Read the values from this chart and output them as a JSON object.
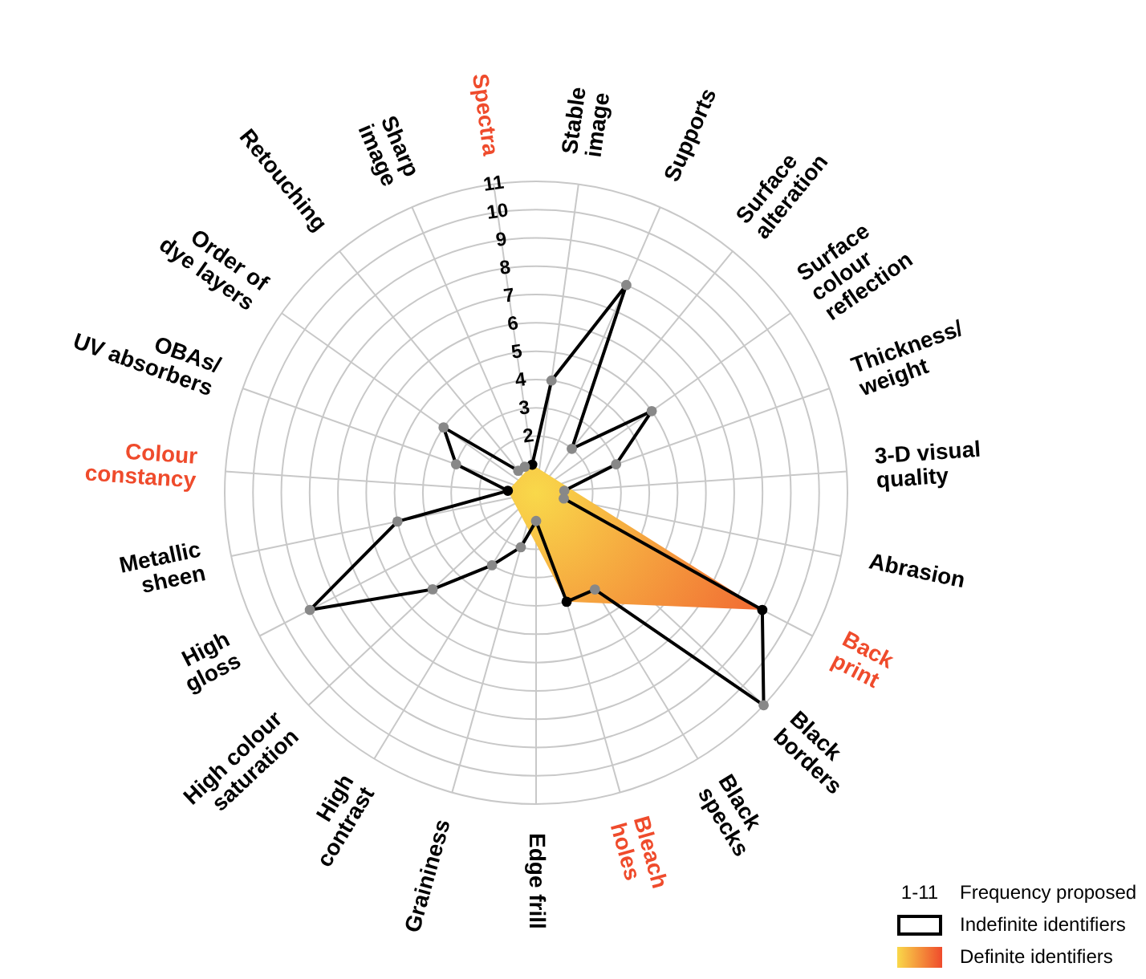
{
  "chart_data": {
    "type": "radar",
    "categories": [
      "Spectra",
      "Stable\nimage",
      "Supports",
      "Surface\nalteration",
      "Surface\ncolour\nreflection",
      "Thickness/\nweight",
      "3-D visual\nquality",
      "Abrasion",
      "Back\nprint",
      "Black\nborders",
      "Black\nspecks",
      "Bleach\nholes",
      "Edge frill",
      "Graininess",
      "High\ncontrast",
      "High colour\nsaturation",
      "High\ngloss",
      "Metallic\nsheen",
      "Colour\nconstancy",
      "OBAs/\nUV absorbers",
      "Order of\ndye layers",
      "Retouching",
      "Sharp\nimage"
    ],
    "series": [
      {
        "name": "Indefinite identifiers",
        "color": "#000000",
        "values": [
          1,
          4,
          8,
          2,
          5,
          3,
          1,
          1,
          9,
          11,
          4,
          4,
          1,
          2,
          3,
          5,
          9,
          5,
          1,
          3,
          4,
          1,
          1
        ],
        "colors": [
          "#000000",
          "#888888",
          "#888888",
          "#888888",
          "#888888",
          "#888888",
          "#888888",
          "#888888",
          "#000000",
          "#888888",
          "#888888",
          "#000000",
          "#888888",
          "#888888",
          "#888888",
          "#888888",
          "#888888",
          "#888888",
          "#000000",
          "#888888",
          "#888888",
          "#888888",
          "#888888"
        ]
      },
      {
        "name": "Definite identifiers",
        "color": "#ef4b2c",
        "values": [
          1,
          null,
          null,
          null,
          null,
          null,
          null,
          null,
          9,
          null,
          null,
          4,
          null,
          null,
          null,
          null,
          null,
          null,
          1,
          null,
          null,
          null,
          null
        ]
      }
    ],
    "ylim": [
      0,
      11
    ],
    "yticks": [
      2,
      3,
      4,
      5,
      6,
      7,
      8,
      9,
      10,
      11
    ],
    "annotations": [
      "1-11",
      "Frequency proposed"
    ],
    "grid": true,
    "legend": "bottom right",
    "marker": "circle",
    "line_style": "solid"
  }
}
